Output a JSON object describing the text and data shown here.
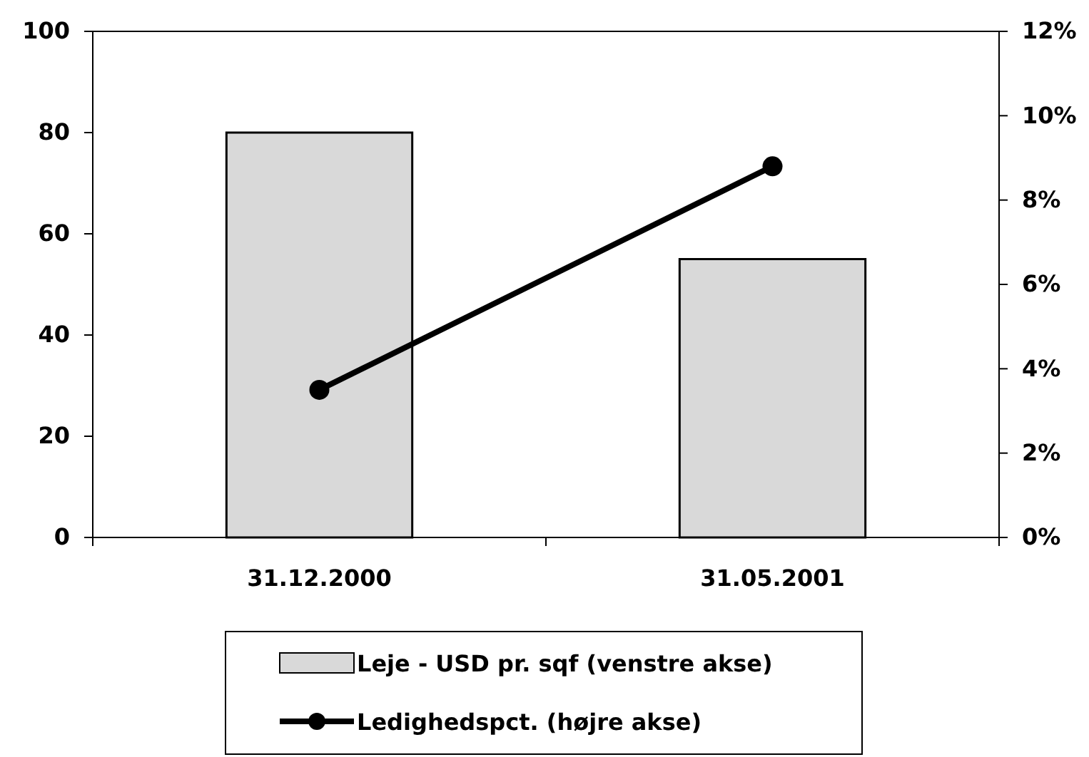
{
  "chart_data": {
    "type": "bar",
    "categories": [
      "31.12.2000",
      "31.05.2001"
    ],
    "series": [
      {
        "name": "Leje - USD pr. sqf (venstre akse)",
        "color": "#d9d9d9",
        "values": [
          80,
          55
        ]
      },
      {
        "name": "Ledighedspct. (højre akse)",
        "type": "line",
        "axis": "y2",
        "color": "#000000",
        "values": [
          3.5,
          8.8
        ],
        "marker": "circle"
      }
    ],
    "ylim": [
      0,
      100
    ],
    "yticks": [
      0,
      20,
      40,
      60,
      80,
      100
    ],
    "y2lim": [
      0,
      12
    ],
    "y2ticks": [
      {
        "value": 0,
        "label": "0%"
      },
      {
        "value": 2,
        "label": "2%"
      },
      {
        "value": 4,
        "label": "4%"
      },
      {
        "value": 6,
        "label": "6%"
      },
      {
        "value": 8,
        "label": "8%"
      },
      {
        "value": 10,
        "label": "10%"
      },
      {
        "value": 12,
        "label": "12%"
      }
    ],
    "legend": "bottom",
    "grid": false
  }
}
